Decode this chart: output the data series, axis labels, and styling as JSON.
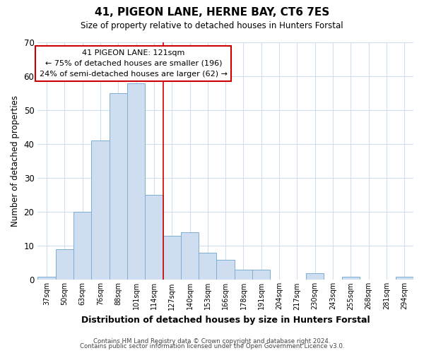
{
  "title": "41, PIGEON LANE, HERNE BAY, CT6 7ES",
  "subtitle": "Size of property relative to detached houses in Hunters Forstal",
  "xlabel": "Distribution of detached houses by size in Hunters Forstal",
  "ylabel": "Number of detached properties",
  "bar_labels": [
    "37sqm",
    "50sqm",
    "63sqm",
    "76sqm",
    "88sqm",
    "101sqm",
    "114sqm",
    "127sqm",
    "140sqm",
    "153sqm",
    "166sqm",
    "178sqm",
    "191sqm",
    "204sqm",
    "217sqm",
    "230sqm",
    "243sqm",
    "255sqm",
    "268sqm",
    "281sqm",
    "294sqm"
  ],
  "bar_heights": [
    1,
    9,
    20,
    41,
    55,
    58,
    25,
    13,
    14,
    8,
    6,
    3,
    3,
    0,
    0,
    2,
    0,
    1,
    0,
    0,
    1
  ],
  "bar_color": "#cfddf0",
  "bar_edge_color": "#7bafd4",
  "vline_color": "#cc0000",
  "ylim": [
    0,
    70
  ],
  "yticks": [
    0,
    10,
    20,
    30,
    40,
    50,
    60,
    70
  ],
  "annotation_title": "41 PIGEON LANE: 121sqm",
  "annotation_line1": "← 75% of detached houses are smaller (196)",
  "annotation_line2": "24% of semi-detached houses are larger (62) →",
  "annotation_box_color": "#ffffff",
  "annotation_box_edge": "#cc0000",
  "footer1": "Contains HM Land Registry data © Crown copyright and database right 2024.",
  "footer2": "Contains public sector information licensed under the Open Government Licence v3.0.",
  "background_color": "#ffffff",
  "grid_color": "#d0dff0"
}
